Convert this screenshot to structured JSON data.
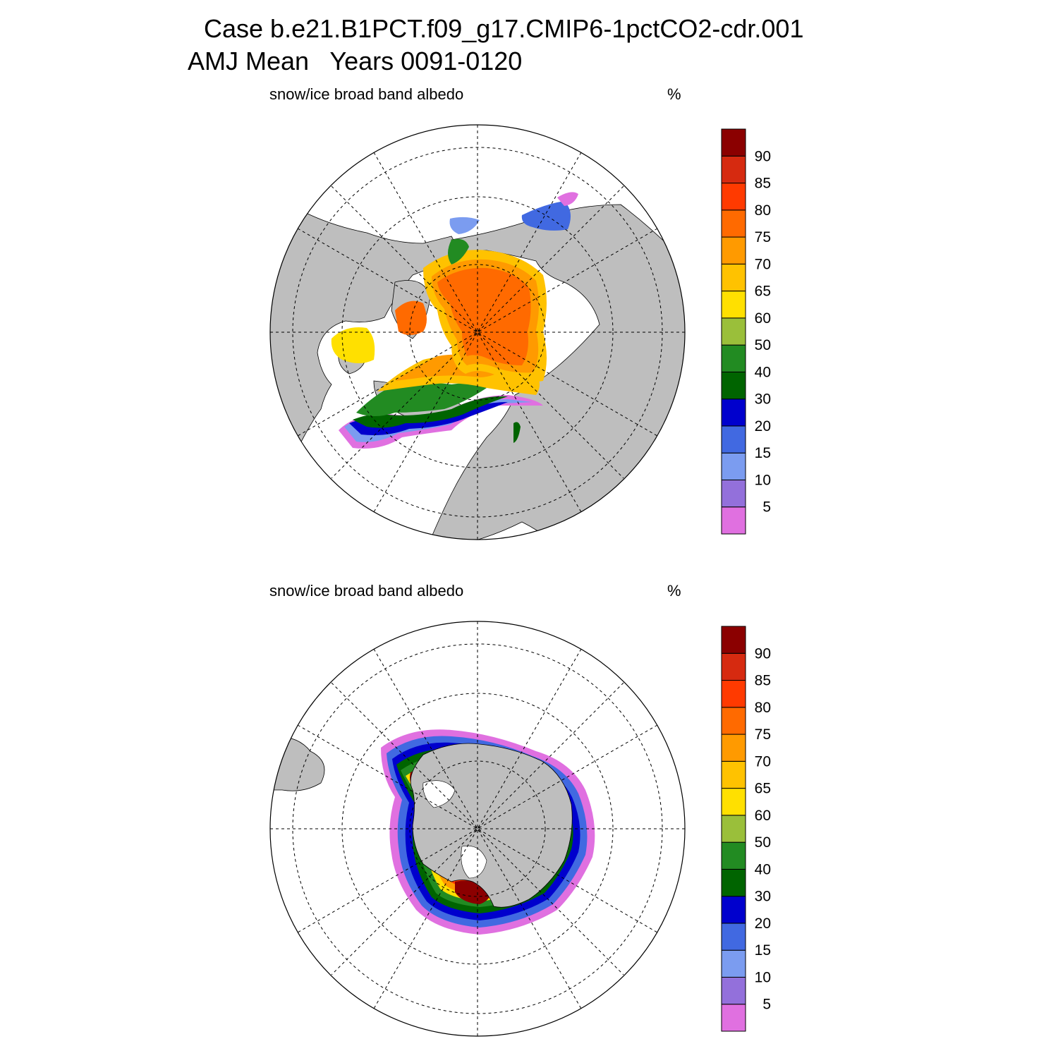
{
  "header": {
    "line1": "Case b.e21.B1PCT.f09_g17.CMIP6-1pctCO2-cdr.001",
    "line2": "AMJ Mean   Years 0091-0120"
  },
  "panels": [
    {
      "id": "north",
      "label": "snow/ice broad band albedo",
      "units": "%"
    },
    {
      "id": "south",
      "label": "snow/ice broad band albedo",
      "units": "%"
    }
  ],
  "colors": {
    "land": "#bebebe",
    "ocean": "#ffffff",
    "outline": "#000000",
    "scale": [
      "#e070e0",
      "#9370db",
      "#7b9cf0",
      "#4169e1",
      "#0000cd",
      "#006400",
      "#228b22",
      "#9abf3a",
      "#ffe000",
      "#ffc200",
      "#ff9a00",
      "#ff6a00",
      "#ff3a00",
      "#d62a10",
      "#8b0000"
    ]
  },
  "colorbar": {
    "labels": [
      "5",
      "10",
      "15",
      "20",
      "30",
      "40",
      "50",
      "60",
      "65",
      "70",
      "75",
      "80",
      "85",
      "90"
    ]
  },
  "chart_data": {
    "type": "heatmap",
    "variable": "snow/ice broad band albedo",
    "units": "%",
    "levels": [
      5,
      10,
      15,
      20,
      30,
      40,
      50,
      60,
      65,
      70,
      75,
      80,
      85,
      90
    ],
    "maps": [
      {
        "hemisphere": "north",
        "projection": "polar stereographic"
      },
      {
        "hemisphere": "south",
        "projection": "polar stereographic"
      }
    ]
  }
}
